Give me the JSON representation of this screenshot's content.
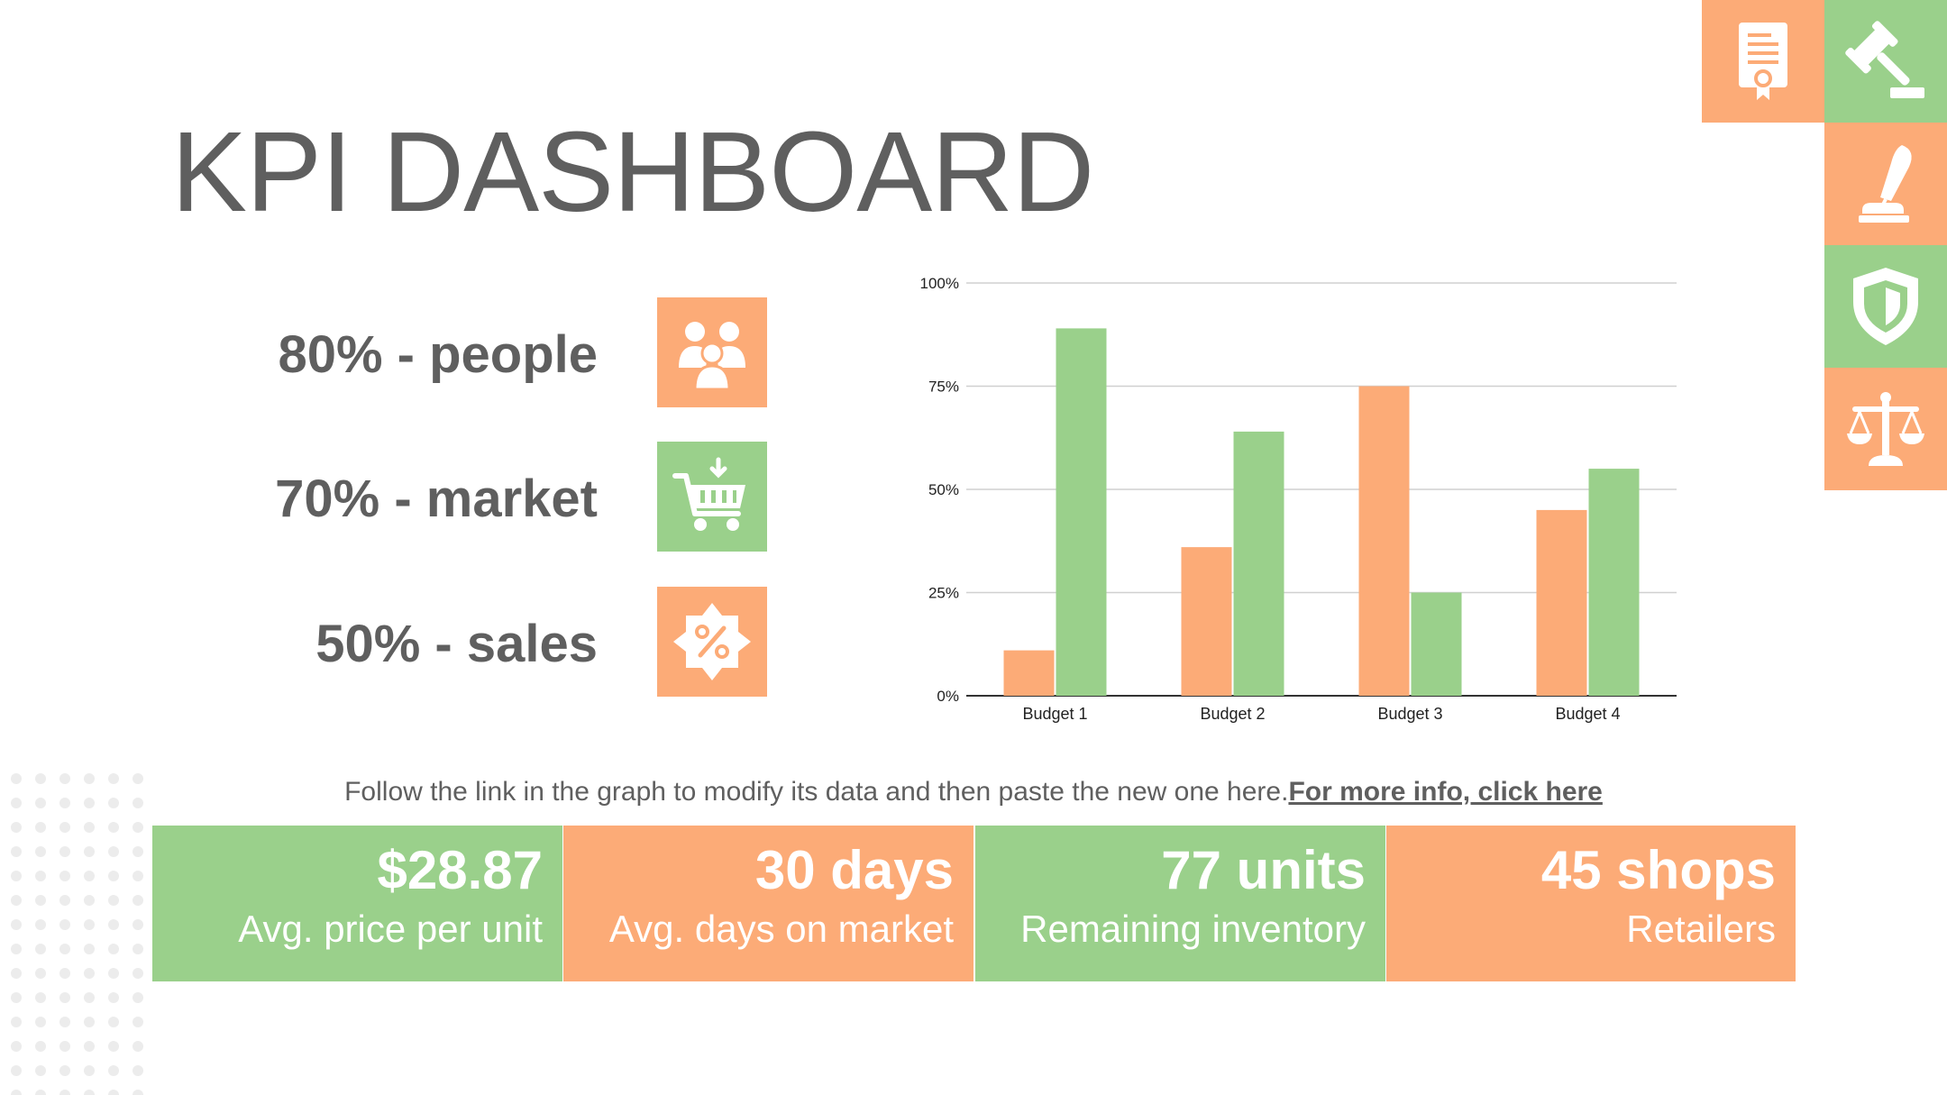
{
  "title": "KPI DASHBOARD",
  "kpis": [
    {
      "label": "80% - people",
      "icon": "people-icon"
    },
    {
      "label": "70% - market",
      "icon": "shopping-cart-icon"
    },
    {
      "label": "50% - sales",
      "icon": "discount-badge-icon"
    }
  ],
  "side_icons": [
    "certificate-icon",
    "gavel-icon",
    "quill-pen-icon",
    "shield-icon",
    "scales-icon"
  ],
  "note": {
    "text": "Follow the link in the graph to modify its data and then paste the new one here.",
    "link": "For more info, click here"
  },
  "tiles": [
    {
      "value": "$28.87",
      "label": "Avg. price per unit"
    },
    {
      "value": "30 days",
      "label": "Avg. days on market"
    },
    {
      "value": "77 units",
      "label": "Remaining inventory"
    },
    {
      "value": "45 shops",
      "label": "Retailers"
    }
  ],
  "colors": {
    "orange": "#fcab77",
    "green": "#9ad08b",
    "text": "#5f5f5f"
  },
  "chart_data": {
    "type": "bar",
    "categories": [
      "Budget 1",
      "Budget 2",
      "Budget 3",
      "Budget 4"
    ],
    "series": [
      {
        "values": [
          11,
          36,
          75,
          45
        ],
        "color": "#fcab77"
      },
      {
        "values": [
          89,
          64,
          25,
          55
        ],
        "color": "#9ad08b"
      }
    ],
    "ylim": [
      0,
      100
    ],
    "yticks": [
      "0%",
      "25%",
      "50%",
      "75%",
      "100%"
    ],
    "grid": true,
    "legend": "none"
  }
}
